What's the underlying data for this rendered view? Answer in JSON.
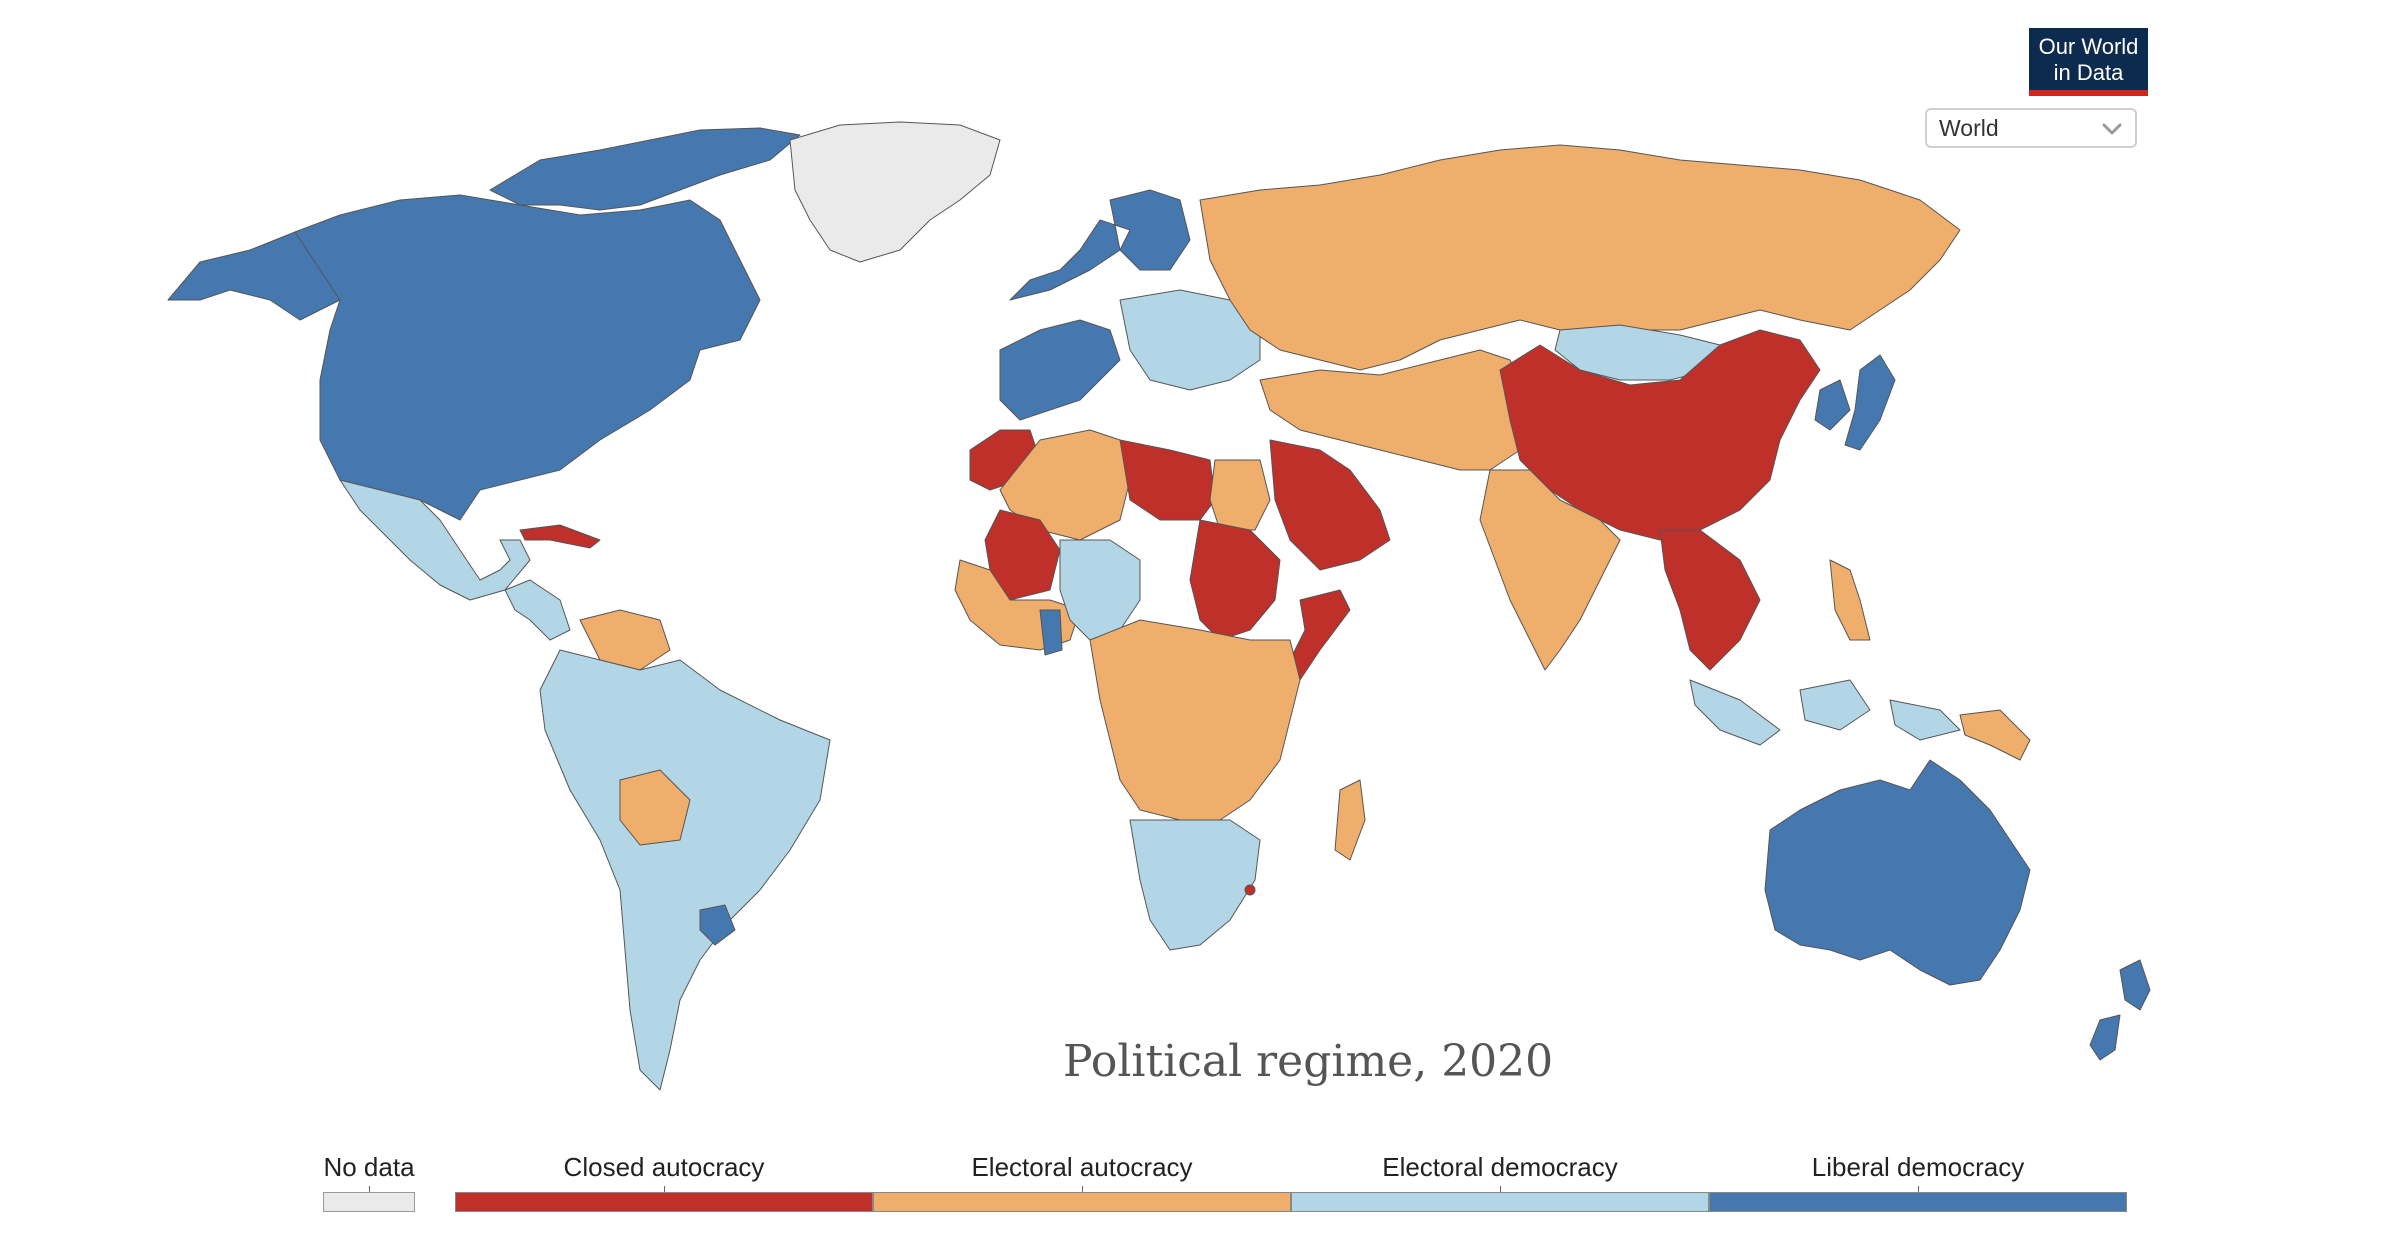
{
  "logo": {
    "line1": "Our World",
    "line2": "in Data"
  },
  "region_select": {
    "value": "World"
  },
  "chart_data": {
    "type": "choropleth",
    "title": "Political regime, 2020",
    "legend": [
      {
        "label": "No data",
        "color": "#eaeaea"
      },
      {
        "label": "Closed autocracy",
        "color": "#c0302a"
      },
      {
        "label": "Electoral autocracy",
        "color": "#efae6b"
      },
      {
        "label": "Electoral democracy",
        "color": "#b3d6e6"
      },
      {
        "label": "Liberal democracy",
        "color": "#4678b0"
      }
    ],
    "regions": [
      {
        "name": "North America (US, Canada)",
        "category": "Liberal democracy"
      },
      {
        "name": "Alaska",
        "category": "Liberal democracy"
      },
      {
        "name": "Greenland",
        "category": "No data"
      },
      {
        "name": "Mexico",
        "category": "Electoral democracy"
      },
      {
        "name": "Central America",
        "category": "Electoral democracy"
      },
      {
        "name": "Cuba",
        "category": "Closed autocracy"
      },
      {
        "name": "Venezuela",
        "category": "Electoral autocracy"
      },
      {
        "name": "Brazil",
        "category": "Electoral democracy"
      },
      {
        "name": "Bolivia",
        "category": "Electoral autocracy"
      },
      {
        "name": "Uruguay",
        "category": "Liberal democracy"
      },
      {
        "name": "Argentina",
        "category": "Electoral democracy"
      },
      {
        "name": "Western Europe",
        "category": "Liberal democracy"
      },
      {
        "name": "Eastern Europe",
        "category": "Electoral democracy"
      },
      {
        "name": "Russia",
        "category": "Electoral autocracy"
      },
      {
        "name": "Central Asia",
        "category": "Electoral autocracy"
      },
      {
        "name": "Mongolia",
        "category": "Electoral democracy"
      },
      {
        "name": "China",
        "category": "Closed autocracy"
      },
      {
        "name": "Japan",
        "category": "Liberal democracy"
      },
      {
        "name": "South Korea",
        "category": "Liberal democracy"
      },
      {
        "name": "India",
        "category": "Electoral autocracy"
      },
      {
        "name": "Southeast Asia mainland",
        "category": "Closed autocracy"
      },
      {
        "name": "Indonesia",
        "category": "Electoral democracy"
      },
      {
        "name": "Philippines",
        "category": "Electoral autocracy"
      },
      {
        "name": "Papua New Guinea",
        "category": "Electoral autocracy"
      },
      {
        "name": "Australia",
        "category": "Liberal democracy"
      },
      {
        "name": "New Zealand",
        "category": "Liberal democracy"
      },
      {
        "name": "Saudi Arabia / Gulf",
        "category": "Closed autocracy"
      },
      {
        "name": "Iran / Middle East",
        "category": "Electoral autocracy"
      },
      {
        "name": "Libya",
        "category": "Closed autocracy"
      },
      {
        "name": "Sudan",
        "category": "Closed autocracy"
      },
      {
        "name": "Mali",
        "category": "Closed autocracy"
      },
      {
        "name": "Morocco",
        "category": "Closed autocracy"
      },
      {
        "name": "Somalia",
        "category": "Closed autocracy"
      },
      {
        "name": "Nigeria / Niger",
        "category": "Electoral democracy"
      },
      {
        "name": "Ghana",
        "category": "Liberal democracy"
      },
      {
        "name": "Central & East Africa",
        "category": "Electoral autocracy"
      },
      {
        "name": "Southern Africa",
        "category": "Electoral democracy"
      },
      {
        "name": "Madagascar",
        "category": "Electoral autocracy"
      },
      {
        "name": "Eswatini",
        "category": "Closed autocracy"
      }
    ]
  }
}
